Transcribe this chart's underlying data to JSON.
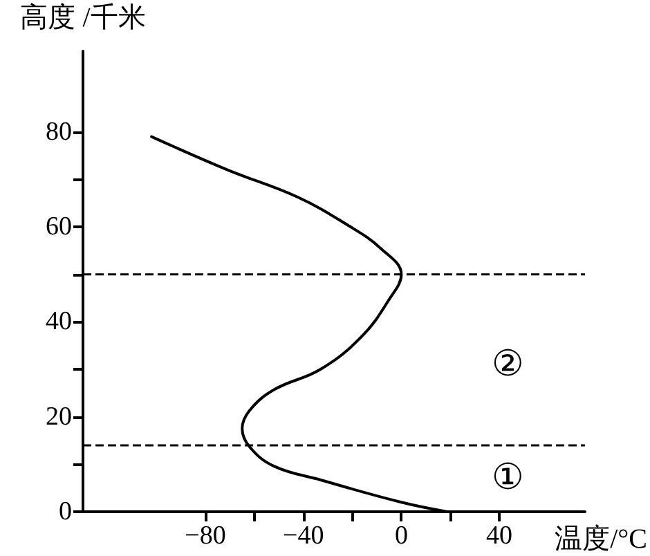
{
  "chart_data": {
    "type": "line",
    "xlabel": "温度/°C",
    "ylabel": "高度 /千米",
    "xlim": [
      -130,
      75
    ],
    "ylim": [
      0,
      97
    ],
    "xticks": [
      {
        "value": -80,
        "label": "−80"
      },
      {
        "value": -60,
        "label": null
      },
      {
        "value": -40,
        "label": "−40"
      },
      {
        "value": -20,
        "label": null
      },
      0,
      {
        "value": 20,
        "label": null
      },
      40
    ],
    "yticks": [
      0,
      {
        "value": 10,
        "label": null
      },
      20,
      {
        "value": 30,
        "label": null
      },
      40,
      {
        "value": 50,
        "label": null
      },
      60,
      {
        "value": 70,
        "label": null
      },
      80
    ],
    "series": [
      {
        "color": "#000000",
        "x": [
          18.7,
          0,
          -33,
          -52,
          -62,
          -65,
          -62,
          -52,
          -33,
          -16,
          -5,
          0,
          -8.5,
          -22,
          -42.5,
          -71,
          -102
        ],
        "values": [
          0,
          2,
          6.7,
          9.6,
          13.7,
          17.5,
          21.3,
          25.7,
          30,
          37,
          44.7,
          50,
          55.5,
          60.4,
          66.3,
          72,
          79
        ]
      }
    ],
    "ref_lines": [
      {
        "axis": "y",
        "value": 14,
        "line_style": "dashed"
      },
      {
        "axis": "y",
        "value": 50,
        "line_style": "dashed"
      }
    ],
    "annotations": [
      "①",
      "②"
    ],
    "grid": false,
    "marker": "none",
    "line_style": "solid"
  }
}
